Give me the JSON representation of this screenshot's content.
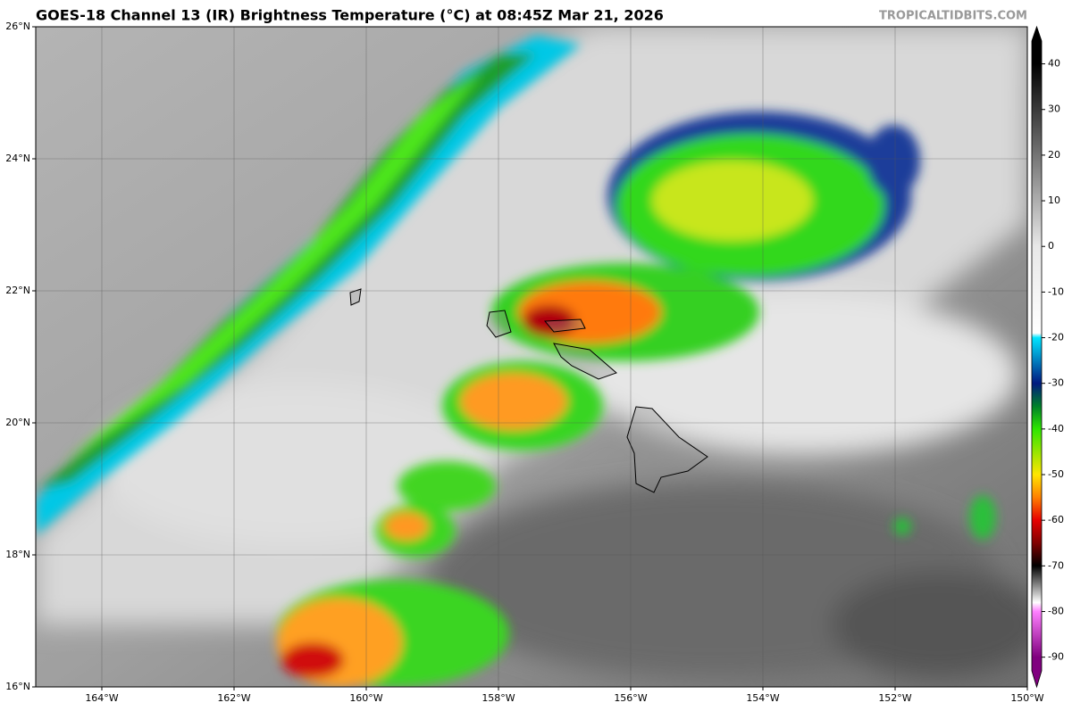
{
  "header": {
    "title": "GOES-18 Channel 13 (IR) Brightness Temperature (°C) at 08:45Z Mar 21, 2026",
    "source": "TROPICALTIDBITS.COM"
  },
  "map": {
    "lonlim": [
      -165,
      -150
    ],
    "latlim": [
      16,
      26
    ],
    "lon_ticks": [
      {
        "value": -164,
        "label": "164°W"
      },
      {
        "value": -162,
        "label": "162°W"
      },
      {
        "value": -160,
        "label": "160°W"
      },
      {
        "value": -158,
        "label": "158°W"
      },
      {
        "value": -156,
        "label": "156°W"
      },
      {
        "value": -154,
        "label": "154°W"
      },
      {
        "value": -152,
        "label": "152°W"
      },
      {
        "value": -150,
        "label": "150°W"
      }
    ],
    "lat_ticks": [
      {
        "value": 16,
        "label": "16°N"
      },
      {
        "value": 18,
        "label": "18°N"
      },
      {
        "value": 20,
        "label": "20°N"
      },
      {
        "value": 22,
        "label": "22°N"
      },
      {
        "value": 24,
        "label": "24°N"
      },
      {
        "value": 26,
        "label": "26°N"
      }
    ],
    "grid": true
  },
  "colorbar": {
    "lim": [
      45,
      -93
    ],
    "ticks": [
      40,
      30,
      20,
      10,
      0,
      -10,
      -20,
      -30,
      -40,
      -50,
      -60,
      -70,
      -80,
      -90
    ],
    "stops": [
      {
        "value": 40,
        "color": "#000000"
      },
      {
        "value": 0,
        "color": "#e8e8e8"
      },
      {
        "value": -19,
        "color": "#ffffff"
      },
      {
        "value": -20,
        "color": "#00e5ff"
      },
      {
        "value": -30,
        "color": "#001a80"
      },
      {
        "value": -35,
        "color": "#00802a"
      },
      {
        "value": -40,
        "color": "#2ee600"
      },
      {
        "value": -50,
        "color": "#ffe600"
      },
      {
        "value": -55,
        "color": "#ff8000"
      },
      {
        "value": -60,
        "color": "#e60000"
      },
      {
        "value": -65,
        "color": "#800000"
      },
      {
        "value": -70,
        "color": "#000000"
      },
      {
        "value": -78,
        "color": "#ffffff"
      },
      {
        "value": -80,
        "color": "#ff80ff"
      },
      {
        "value": -90,
        "color": "#80007f"
      }
    ]
  }
}
